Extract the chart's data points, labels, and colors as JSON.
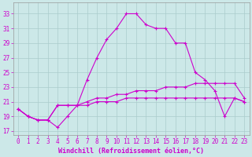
{
  "xlabel": "Windchill (Refroidissement éolien,°C)",
  "background_color": "#cce8e8",
  "line_color": "#cc00cc",
  "xlim": [
    -0.5,
    23.5
  ],
  "ylim": [
    16.5,
    34.5
  ],
  "yticks": [
    17,
    19,
    21,
    23,
    25,
    27,
    29,
    31,
    33
  ],
  "xticks": [
    0,
    1,
    2,
    3,
    4,
    5,
    6,
    7,
    8,
    9,
    10,
    11,
    12,
    13,
    14,
    15,
    16,
    17,
    18,
    19,
    20,
    21,
    22,
    23
  ],
  "line1_x": [
    0,
    1,
    2,
    3,
    4,
    5,
    6,
    7,
    8,
    9,
    10,
    11,
    12,
    13,
    14,
    15,
    16,
    17,
    18,
    19,
    20,
    21,
    22,
    23
  ],
  "line1_y": [
    20.0,
    19.0,
    18.5,
    18.5,
    17.5,
    19.0,
    20.5,
    24.0,
    27.0,
    29.5,
    31.0,
    33.0,
    33.0,
    31.5,
    31.0,
    31.0,
    29.0,
    29.0,
    25.0,
    24.0,
    22.5,
    19.0,
    21.5,
    21.0
  ],
  "line2_x": [
    0,
    1,
    2,
    3,
    4,
    5,
    6,
    7,
    8,
    9,
    10,
    11,
    12,
    13,
    14,
    15,
    16,
    17,
    18,
    19,
    20,
    21,
    22,
    23
  ],
  "line2_y": [
    20.0,
    19.0,
    18.5,
    18.5,
    20.5,
    20.5,
    20.5,
    21.0,
    21.5,
    21.5,
    22.0,
    22.0,
    22.5,
    22.5,
    22.5,
    23.0,
    23.0,
    23.0,
    23.5,
    23.5,
    23.5,
    23.5,
    23.5,
    21.5
  ],
  "line3_x": [
    0,
    1,
    2,
    3,
    4,
    5,
    6,
    7,
    8,
    9,
    10,
    11,
    12,
    13,
    14,
    15,
    16,
    17,
    18,
    19,
    20,
    21,
    22,
    23
  ],
  "line3_y": [
    20.0,
    19.0,
    18.5,
    18.5,
    20.5,
    20.5,
    20.5,
    20.5,
    21.0,
    21.0,
    21.0,
    21.5,
    21.5,
    21.5,
    21.5,
    21.5,
    21.5,
    21.5,
    21.5,
    21.5,
    21.5,
    21.5,
    21.5,
    21.0
  ],
  "grid_color": "#aacccc",
  "spine_color": "#999999",
  "tick_fontsize": 5.5,
  "xlabel_fontsize": 6.0,
  "marker_size": 3.5,
  "linewidth": 0.8
}
